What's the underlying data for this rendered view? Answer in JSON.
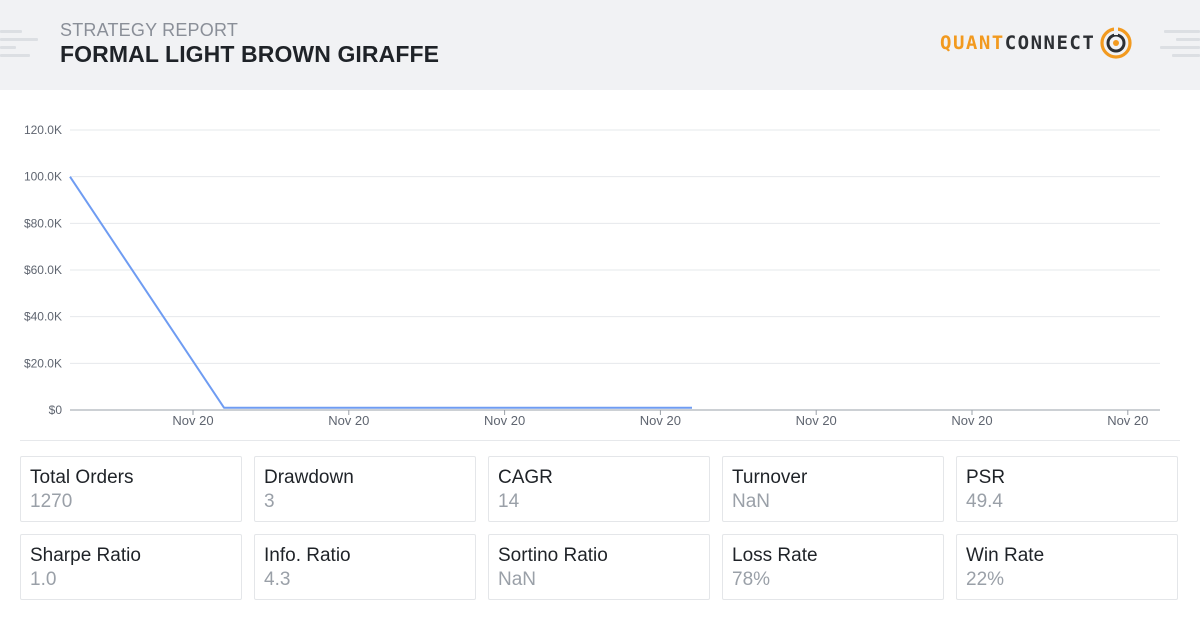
{
  "header": {
    "report_label": "STRATEGY REPORT",
    "strategy_name": "FORMAL LIGHT BROWN GIRAFFE",
    "logo": {
      "part1": "QUANT",
      "part2": "CONNECT",
      "icon": "quantconnect-logo-icon",
      "accent_color": "#f29a1f",
      "dark_color": "#2d3034"
    }
  },
  "chart_data": {
    "type": "line",
    "x": [
      0,
      1,
      2,
      3,
      4
    ],
    "y": [
      100000,
      1000,
      1000,
      1000,
      1000
    ],
    "ytick_labels": [
      "$0",
      "$20.0K",
      "$40.0K",
      "$60.0K",
      "$80.0K",
      "100.0K",
      "120.0K"
    ],
    "ytick_values": [
      0,
      20000,
      40000,
      60000,
      80000,
      100000,
      120000
    ],
    "xtick_labels": [
      "Nov 20",
      "Nov 20",
      "Nov 20",
      "Nov 20",
      "Nov 20",
      "Nov 20",
      "Nov 20"
    ],
    "ylim": [
      0,
      120000
    ],
    "grid": true,
    "line_color": "#6f9cf2"
  },
  "stats": [
    {
      "label": "Total Orders",
      "value": "1270"
    },
    {
      "label": "Drawdown",
      "value": "3"
    },
    {
      "label": "CAGR",
      "value": "14"
    },
    {
      "label": "Turnover",
      "value": "NaN"
    },
    {
      "label": "PSR",
      "value": "49.4"
    },
    {
      "label": "Sharpe Ratio",
      "value": "1.0"
    },
    {
      "label": "Info. Ratio",
      "value": "4.3"
    },
    {
      "label": "Sortino Ratio",
      "value": "NaN"
    },
    {
      "label": "Loss Rate",
      "value": "78%"
    },
    {
      "label": "Win Rate",
      "value": "22%"
    }
  ]
}
